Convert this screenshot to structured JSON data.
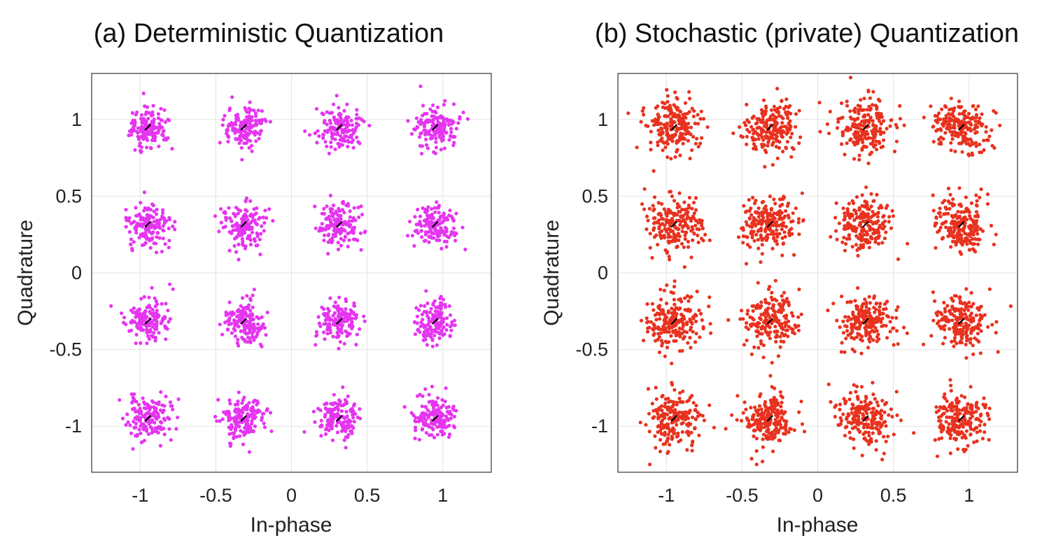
{
  "chart_data": [
    {
      "type": "scatter",
      "title": "(a)  Deterministic Quantization",
      "xlabel": "In-phase",
      "ylabel": "Quadrature",
      "xlim": [
        -1.32,
        1.32
      ],
      "ylim": [
        -1.3,
        1.3
      ],
      "xticks": [
        -1,
        -0.5,
        0,
        0.5,
        1
      ],
      "xtick_labels": [
        "-1",
        "-0.5",
        "0",
        "0.5",
        "1"
      ],
      "yticks": [
        -1,
        -0.5,
        0,
        0.5,
        1
      ],
      "ytick_labels": [
        "-1",
        "-0.5",
        "0",
        "0.5",
        "1"
      ],
      "grid": true,
      "point_color": "#e535f0",
      "ideal_marker_color": "#000000",
      "constellation": "16-QAM",
      "levels": [
        -0.949,
        -0.316,
        0.316,
        0.949
      ],
      "points_per_symbol": 150,
      "noise_std": 0.07,
      "seed": 11
    },
    {
      "type": "scatter",
      "title": "(b) Stochastic (private) Quantization",
      "xlabel": "In-phase",
      "ylabel": "Quadrature",
      "xlim": [
        -1.32,
        1.32
      ],
      "ylim": [
        -1.3,
        1.3
      ],
      "xticks": [
        -1,
        -0.5,
        0,
        0.5,
        1
      ],
      "xtick_labels": [
        "-1",
        "-0.5",
        "0",
        "0.5",
        "1"
      ],
      "yticks": [
        -1,
        -0.5,
        0,
        0.5,
        1
      ],
      "ytick_labels": [
        "-1",
        "-0.5",
        "0",
        "0.5",
        "1"
      ],
      "grid": true,
      "point_color": "#e8321f",
      "ideal_marker_color": "#000000",
      "constellation": "16-QAM",
      "levels": [
        -0.949,
        -0.316,
        0.316,
        0.949
      ],
      "points_per_symbol": 200,
      "noise_std": 0.09,
      "seed": 29
    }
  ]
}
